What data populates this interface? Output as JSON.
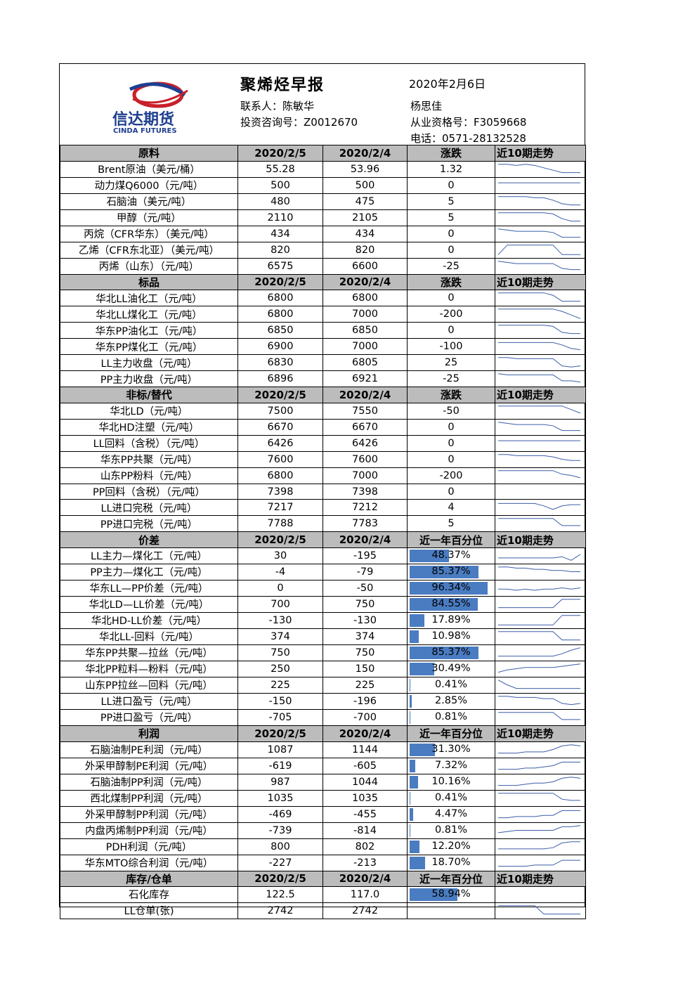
{
  "header": {
    "title": "聚烯烃早报",
    "date": "2020年2月6日",
    "contact": "联系人：陈敏华",
    "advisor_no": "投资咨询号：Z0012670",
    "analyst": "杨思佳",
    "qualification_no": "从业资格号：F3059668",
    "phone": "电话：0571-28132528",
    "logo_cn": "信达期货",
    "logo_en": "CINDA FUTURES"
  },
  "colors": {
    "section_bg": "#bcbcbc",
    "bar": "#4a7cc2",
    "line": "#3b5ea8"
  },
  "sections": [
    {
      "title": "原料",
      "h1": "2020/2/5",
      "h2": "2020/2/4",
      "h3": "涨跌",
      "h4": "近10期走势",
      "rows": [
        {
          "label": "Brent原油（美元/桶）",
          "v1": "55.28",
          "v2": "53.96",
          "v3": "1.32",
          "trend": [
            9,
            9,
            8,
            9,
            8,
            6,
            4,
            2,
            2,
            2
          ]
        },
        {
          "label": "动力煤Q6000（元/吨）",
          "v1": "500",
          "v2": "500",
          "v3": "0",
          "trend": [
            7,
            7,
            7,
            7,
            7,
            7,
            7,
            7,
            7,
            7
          ]
        },
        {
          "label": "石脑油（美元/吨）",
          "v1": "480",
          "v2": "475",
          "v3": "5",
          "trend": [
            9,
            9,
            9,
            9,
            8,
            8,
            6,
            3,
            2,
            2
          ]
        },
        {
          "label": "甲醇（元/吨）",
          "v1": "2110",
          "v2": "2105",
          "v3": "5",
          "trend": [
            9,
            9,
            9,
            9,
            9,
            9,
            8,
            4,
            2,
            2
          ]
        },
        {
          "label": "丙烷（CFR华东）（美元/吨）",
          "v1": "434",
          "v2": "434",
          "v3": "0",
          "trend": [
            9,
            8,
            7,
            7,
            7,
            7,
            6,
            2,
            2,
            2
          ]
        },
        {
          "label": "乙烯（CFR东北亚）（美元/吨）",
          "v1": "820",
          "v2": "820",
          "v3": "0",
          "trend": [
            1,
            9,
            9,
            9,
            9,
            9,
            9,
            1,
            1,
            1
          ]
        },
        {
          "label": "丙烯（山东）（元/吨）",
          "v1": "6575",
          "v2": "6600",
          "v3": "-25",
          "trend": [
            9,
            8,
            7,
            7,
            7,
            7,
            7,
            3,
            2,
            2
          ]
        }
      ]
    },
    {
      "title": "标品",
      "h1": "2020/2/5",
      "h2": "2020/2/4",
      "h3": "涨跌",
      "h4": "近10期走势",
      "rows": [
        {
          "label": "华北LL油化工（元/吨）",
          "v1": "6800",
          "v2": "6800",
          "v3": "0",
          "trend": [
            9,
            9,
            9,
            9,
            9,
            9,
            7,
            2,
            2,
            2
          ]
        },
        {
          "label": "华北LL煤化工（元/吨）",
          "v1": "6800",
          "v2": "7000",
          "v3": "-200",
          "trend": [
            9,
            9,
            9,
            9,
            9,
            9,
            9,
            7,
            4,
            1
          ]
        },
        {
          "label": "华东PP油化工（元/吨）",
          "v1": "6850",
          "v2": "6850",
          "v3": "0",
          "trend": [
            9,
            9,
            9,
            9,
            9,
            9,
            8,
            3,
            2,
            2
          ]
        },
        {
          "label": "华东PP煤化工（元/吨）",
          "v1": "6900",
          "v2": "7000",
          "v3": "-100",
          "trend": [
            8,
            8,
            8,
            8,
            8,
            8,
            8,
            6,
            3,
            2
          ]
        },
        {
          "label": "LL主力收盘（元/吨）",
          "v1": "6830",
          "v2": "6805",
          "v3": "25",
          "trend": [
            9,
            9,
            8,
            8,
            8,
            8,
            8,
            2,
            1,
            2
          ]
        },
        {
          "label": "PP主力收盘（元/吨）",
          "v1": "6896",
          "v2": "6921",
          "v3": "-25",
          "trend": [
            9,
            8,
            8,
            8,
            8,
            8,
            8,
            3,
            3,
            2
          ]
        }
      ]
    },
    {
      "title": "非标/替代",
      "h1": "2020/2/5",
      "h2": "2020/2/4",
      "h3": "涨跌",
      "h4": "近10期走势",
      "rows": [
        {
          "label": "华北LD（元/吨）",
          "v1": "7500",
          "v2": "7550",
          "v3": "-50",
          "trend": [
            9,
            9,
            9,
            9,
            9,
            9,
            9,
            9,
            6,
            3
          ]
        },
        {
          "label": "华北HD注塑（元/吨）",
          "v1": "6670",
          "v2": "6670",
          "v3": "0",
          "trend": [
            9,
            8,
            7,
            7,
            7,
            7,
            6,
            2,
            2,
            2
          ]
        },
        {
          "label": "LL回料（含税）（元/吨）",
          "v1": "6426",
          "v2": "6426",
          "v3": "0",
          "trend": [
            7,
            7,
            7,
            7,
            7,
            7,
            7,
            7,
            7,
            7
          ]
        },
        {
          "label": "华东PP共聚（元/吨）",
          "v1": "7600",
          "v2": "7600",
          "v3": "0",
          "trend": [
            9,
            9,
            8,
            8,
            8,
            8,
            7,
            5,
            4,
            4
          ]
        },
        {
          "label": "山东PP粉料（元/吨）",
          "v1": "6800",
          "v2": "7000",
          "v3": "-200",
          "trend": [
            9,
            9,
            9,
            9,
            9,
            9,
            9,
            6,
            5,
            3
          ]
        },
        {
          "label": "PP回料（含税）（元/吨）",
          "v1": "7398",
          "v2": "7398",
          "v3": "0",
          "trend": []
        },
        {
          "label": "LL进口完税（元/吨）",
          "v1": "7217",
          "v2": "7212",
          "v3": "4",
          "trend": [
            8,
            8,
            8,
            8,
            8,
            6,
            3,
            6,
            7,
            7
          ]
        },
        {
          "label": "PP进口完税（元/吨）",
          "v1": "7788",
          "v2": "7783",
          "v3": "5",
          "trend": [
            9,
            9,
            9,
            9,
            9,
            9,
            9,
            3,
            3,
            3
          ]
        }
      ]
    },
    {
      "title": "价差",
      "h1": "2020/2/5",
      "h2": "2020/2/4",
      "h3": "近一年百分位",
      "h4": "近10期走势",
      "rows": [
        {
          "label": "LL主力—煤化工（元/吨）",
          "v1": "30",
          "v2": "-195",
          "v3": "48.37%",
          "pct": 48.37,
          "trend": [
            3,
            3,
            3,
            3,
            3,
            3,
            3,
            4,
            1,
            6
          ]
        },
        {
          "label": "PP主力—煤化工（元/吨）",
          "v1": "-4",
          "v2": "-79",
          "v3": "85.37%",
          "pct": 85.37,
          "trend": [
            9,
            9,
            8,
            8,
            7,
            7,
            6,
            6,
            5,
            5
          ]
        },
        {
          "label": "华东LL—PP价差（元/吨）",
          "v1": "0",
          "v2": "-50",
          "v3": "96.34%",
          "pct": 96.34,
          "trend": [
            4,
            4,
            3,
            4,
            3,
            4,
            4,
            5,
            4,
            5
          ]
        },
        {
          "label": "华北LD—LL价差（元/吨）",
          "v1": "700",
          "v2": "750",
          "v3": "84.55%",
          "pct": 84.55,
          "trend": [
            2,
            2,
            2,
            2,
            2,
            2,
            2,
            9,
            9,
            9
          ]
        },
        {
          "label": "华北HD-LL价差（元/吨）",
          "v1": "-130",
          "v2": "-130",
          "v3": "17.89%",
          "pct": 17.89,
          "trend": [
            1,
            1,
            1,
            1,
            1,
            1,
            1,
            9,
            9,
            9
          ]
        },
        {
          "label": "华北LL-回料（元/吨）",
          "v1": "374",
          "v2": "374",
          "v3": "10.98%",
          "pct": 10.98,
          "trend": [
            9,
            9,
            9,
            9,
            9,
            9,
            9,
            2,
            2,
            2
          ]
        },
        {
          "label": "华东PP共聚—拉丝（元/吨）",
          "v1": "750",
          "v2": "750",
          "v3": "85.37%",
          "pct": 85.37,
          "trend": [
            2,
            2,
            2,
            2,
            2,
            2,
            2,
            4,
            7,
            9
          ]
        },
        {
          "label": "华北PP粒料—粉料（元/吨）",
          "v1": "250",
          "v2": "150",
          "v3": "30.49%",
          "pct": 30.49,
          "trend": [
            2,
            4,
            5,
            6,
            6,
            6,
            6,
            7,
            8,
            9
          ]
        },
        {
          "label": "山东PP拉丝—回料（元/吨）",
          "v1": "225",
          "v2": "225",
          "v3": "0.41%",
          "pct": 0.41,
          "trend": [
            9,
            5,
            2,
            2,
            2,
            2,
            2,
            2,
            2,
            2
          ]
        },
        {
          "label": "LL进口盈亏（元/吨）",
          "v1": "-150",
          "v2": "-196",
          "v3": "2.85%",
          "pct": 2.85,
          "trend": [
            9,
            9,
            8,
            8,
            8,
            7,
            7,
            3,
            2,
            3
          ]
        },
        {
          "label": "PP进口盈亏（元/吨）",
          "v1": "-705",
          "v2": "-700",
          "v3": "0.81%",
          "pct": 0.81,
          "trend": [
            9,
            9,
            9,
            9,
            9,
            9,
            9,
            3,
            3,
            3
          ]
        }
      ]
    },
    {
      "title": "利润",
      "h1": "2020/2/5",
      "h2": "2020/2/4",
      "h3": "近一年百分位",
      "h4": "近10期走势",
      "rows": [
        {
          "label": "石脑油制PE利润（元/吨）",
          "v1": "1087",
          "v2": "1144",
          "v3": "31.30%",
          "pct": 31.3,
          "trend": [
            2,
            2,
            2,
            3,
            3,
            3,
            5,
            8,
            9,
            8
          ]
        },
        {
          "label": "外采甲醇制PE利润（元/吨）",
          "v1": "-619",
          "v2": "-605",
          "v3": "7.32%",
          "pct": 7.32,
          "trend": [
            2,
            2,
            2,
            3,
            3,
            4,
            5,
            8,
            8,
            8
          ]
        },
        {
          "label": "石脑油制PP利润（元/吨）",
          "v1": "987",
          "v2": "1044",
          "v3": "10.16%",
          "pct": 10.16,
          "trend": [
            2,
            2,
            2,
            3,
            4,
            4,
            5,
            8,
            9,
            8
          ]
        },
        {
          "label": "西北煤制PP利润（元/吨）",
          "v1": "1035",
          "v2": "1035",
          "v3": "0.41%",
          "pct": 0.41,
          "trend": [
            9,
            9,
            9,
            9,
            9,
            9,
            9,
            4,
            3,
            3
          ]
        },
        {
          "label": "外采甲醇制PP利润（元/吨）",
          "v1": "-469",
          "v2": "-455",
          "v3": "4.47%",
          "pct": 4.47,
          "trend": [
            2,
            2,
            3,
            3,
            3,
            4,
            4,
            8,
            8,
            8
          ]
        },
        {
          "label": "内盘丙烯制PP利润（元/吨）",
          "v1": "-739",
          "v2": "-814",
          "v3": "0.81%",
          "pct": 0.81,
          "trend": [
            3,
            4,
            5,
            5,
            5,
            5,
            5,
            8,
            8,
            9
          ]
        },
        {
          "label": "PDH利润（元/吨）",
          "v1": "800",
          "v2": "802",
          "v3": "12.20%",
          "pct": 12.2,
          "trend": [
            3,
            3,
            3,
            3,
            3,
            3,
            4,
            8,
            9,
            9
          ]
        },
        {
          "label": "华东MTO综合利润（元/吨）",
          "v1": "-227",
          "v2": "-213",
          "v3": "18.70%",
          "pct": 18.7,
          "trend": [
            2,
            2,
            2,
            2,
            3,
            3,
            3,
            7,
            7,
            7
          ]
        }
      ]
    },
    {
      "title": "库存/仓单",
      "h1": "2020/2/5",
      "h2": "2020/2/4",
      "h3": "近一年百分位",
      "h4": "近10期走势",
      "rows": [
        {
          "label": "石化库存",
          "v1": "122.5",
          "v2": "117.0",
          "v3": "58.94%",
          "pct": 58.94,
          "trend": []
        },
        {
          "label": "LL仓单(张)",
          "v1": "2742",
          "v2": "2742",
          "v3": "",
          "trend": [
            9,
            9,
            9,
            9,
            9,
            2,
            2,
            2,
            2,
            2
          ]
        }
      ]
    }
  ]
}
